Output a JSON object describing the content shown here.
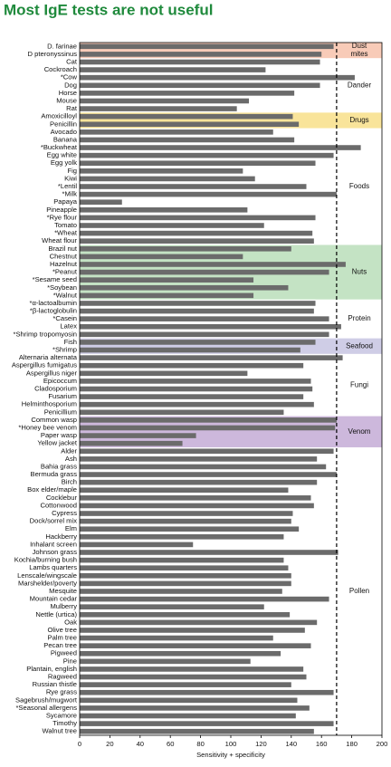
{
  "chart_data": {
    "type": "bar",
    "orientation": "horizontal",
    "title": "Most IgE tests are not useful",
    "x_label": "Sensitivity + specificity",
    "color": "#6b6b6b",
    "xlim": [
      0,
      200
    ],
    "xticks": [
      0,
      20,
      40,
      60,
      80,
      100,
      120,
      140,
      160,
      180,
      200
    ],
    "reference_line": 170,
    "categories": [
      "D. farinae",
      "D pteronyssinus",
      "Cat",
      "Cockroach",
      "*Cow",
      "Dog",
      "Horse",
      "Mouse",
      "Rat",
      "Amoxicilloyl",
      "Penicillin",
      "Avocado",
      "Banana",
      "*Buckwheat",
      "Egg white",
      "Egg yolk",
      "Fig",
      "Kiwi",
      "*Lentil",
      "*Milk",
      "Papaya",
      "Pineapple",
      "*Rye flour",
      "Tomato",
      "*Wheat",
      "Wheat flour",
      "Brazil nut",
      "Chestnut",
      "Hazelnut",
      "*Peanut",
      "*Sesame seed",
      "*Soybean",
      "*Walnut",
      "*α-lactoalbumin",
      "*β-lactoglobulin",
      "*Casein",
      "Latex",
      "*Shrimp tropomyosin",
      "Fish",
      "*Shrimp",
      "Alternaria alternata",
      "Aspergillus fumigatus",
      "Aspergillus niger",
      "Epicoccum",
      "Cladosporium",
      "Fusarium",
      "Helminthosporium",
      "Penicillium",
      "Common wasp",
      "*Honey bee venom",
      "Paper wasp",
      "Yellow jacket",
      "Alder",
      "Ash",
      "Bahia grass",
      "Bermuda grass",
      "Birch",
      "Box elder/maple",
      "Cocklebur",
      "Cottonwood",
      "Cypress",
      "Dock/sorrel mix",
      "Elm",
      "Hackberry",
      "Inhalant screen",
      "Johnson grass",
      "Kochia/burning bush",
      "Lambs quarters",
      "Lenscale/wingscale",
      "Marshelder/poverty",
      "Mesquite",
      "Mountain cedar",
      "Mulberry",
      "Nettle (urtica)",
      "Oak",
      "Olive tree",
      "Palm tree",
      "Pecan tree",
      "Pigweed",
      "Pine",
      "Plantain, english",
      "Ragweed",
      "Russian thistle",
      "Rye grass",
      "Sagebrush/mugwort",
      "*Seasonal allergens",
      "Sycamore",
      "Timothy",
      "Walnut tree"
    ],
    "values": [
      168,
      160,
      159,
      123,
      182,
      159,
      142,
      112,
      104,
      141,
      145,
      128,
      142,
      186,
      168,
      156,
      108,
      116,
      150,
      170,
      28,
      111,
      156,
      122,
      154,
      155,
      140,
      108,
      176,
      165,
      115,
      138,
      115,
      156,
      155,
      165,
      173,
      165,
      156,
      146,
      174,
      148,
      111,
      153,
      154,
      148,
      155,
      135,
      170,
      169,
      77,
      68,
      168,
      157,
      163,
      170,
      157,
      138,
      153,
      155,
      141,
      140,
      145,
      135,
      75,
      171,
      135,
      138,
      140,
      140,
      134,
      165,
      122,
      139,
      157,
      149,
      128,
      153,
      133,
      113,
      148,
      150,
      140,
      168,
      144,
      152,
      143,
      168,
      155
    ],
    "groups": [
      {
        "lines": [
          "Dust",
          "mites"
        ],
        "rows": 2,
        "color": "#f8cbb8"
      },
      {
        "lines": [
          "Dander"
        ],
        "rows": 7,
        "color": "none"
      },
      {
        "lines": [
          "Drugs"
        ],
        "rows": 2,
        "color": "#f9e49a"
      },
      {
        "lines": [
          "Foods"
        ],
        "rows": 15,
        "color": "none"
      },
      {
        "lines": [
          "Nuts"
        ],
        "rows": 7,
        "color": "#c4e3c4"
      },
      {
        "lines": [
          "Protein"
        ],
        "rows": 5,
        "color": "none"
      },
      {
        "lines": [
          "Seafood"
        ],
        "rows": 2,
        "color": "#cfcde6"
      },
      {
        "lines": [
          "Fungi"
        ],
        "rows": 8,
        "color": "none"
      },
      {
        "lines": [
          "Venom"
        ],
        "rows": 4,
        "color": "#cdb8dc"
      },
      {
        "lines": [
          "Pollen"
        ],
        "rows": 37,
        "color": "none"
      }
    ]
  }
}
